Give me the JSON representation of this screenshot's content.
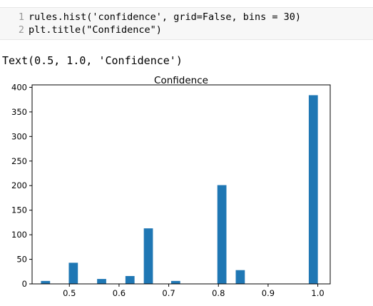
{
  "code_cell": {
    "lines": [
      {
        "number": "1",
        "code": "rules.hist('confidence', grid=False, bins = 30)"
      },
      {
        "number": "2",
        "code": "plt.title(\"Confidence\")"
      }
    ]
  },
  "output_text": "Text(0.5, 1.0, 'Confidence')",
  "chart_data": {
    "type": "bar",
    "title": "Confidence",
    "xlabel": "",
    "ylabel": "",
    "xlim": [
      0.425,
      1.025
    ],
    "ylim": [
      0,
      405
    ],
    "grid": false,
    "bar_color": "#1f77b4",
    "bar_width": 0.0183,
    "x_ticks": [
      {
        "value": 0.5,
        "label": "0.5"
      },
      {
        "value": 0.6,
        "label": "0.6"
      },
      {
        "value": 0.7,
        "label": "0.7"
      },
      {
        "value": 0.8,
        "label": "0.8"
      },
      {
        "value": 0.9,
        "label": "0.9"
      },
      {
        "value": 1.0,
        "label": "1.0"
      }
    ],
    "y_ticks": [
      {
        "value": 0,
        "label": "0"
      },
      {
        "value": 50,
        "label": "50"
      },
      {
        "value": 100,
        "label": "100"
      },
      {
        "value": 150,
        "label": "150"
      },
      {
        "value": 200,
        "label": "200"
      },
      {
        "value": 250,
        "label": "250"
      },
      {
        "value": 300,
        "label": "300"
      },
      {
        "value": 350,
        "label": "350"
      },
      {
        "value": 400,
        "label": "400"
      }
    ],
    "bins": [
      {
        "x": 0.452,
        "value": 6
      },
      {
        "x": 0.508,
        "value": 43
      },
      {
        "x": 0.565,
        "value": 10
      },
      {
        "x": 0.622,
        "value": 16
      },
      {
        "x": 0.659,
        "value": 113
      },
      {
        "x": 0.714,
        "value": 6
      },
      {
        "x": 0.807,
        "value": 201
      },
      {
        "x": 0.844,
        "value": 28
      },
      {
        "x": 0.991,
        "value": 384
      }
    ]
  }
}
